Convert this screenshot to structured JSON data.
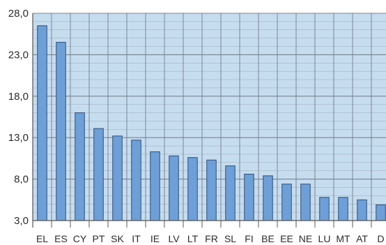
{
  "chart_data": {
    "type": "bar",
    "title": "",
    "xlabel": "",
    "ylabel": "",
    "categories": [
      "EL",
      "ES",
      "CY",
      "PT",
      "SK",
      "IT",
      "IE",
      "LV",
      "LT",
      "FR",
      "SL",
      "FI",
      "BE",
      "EE",
      "NE",
      "LU",
      "MT",
      "AT",
      "D"
    ],
    "values": [
      26.5,
      24.5,
      16.0,
      14.1,
      13.2,
      12.7,
      11.3,
      10.8,
      10.6,
      10.3,
      9.6,
      8.6,
      8.4,
      7.4,
      7.4,
      5.8,
      5.8,
      5.5,
      4.9
    ],
    "ylim": [
      3.0,
      28.0
    ],
    "yticks": [
      "28,0",
      "23,0",
      "18,0",
      "13,0",
      "8,0",
      "3,0"
    ],
    "ytick_values": [
      28,
      23,
      18,
      13,
      8,
      3
    ],
    "grid": true,
    "colors": {
      "plot_background": "#c6dcef",
      "bar_fill": "#6e9fd6",
      "bar_stroke": "#2f4f7a",
      "grid": "#6f7a85",
      "axis": "#555555"
    }
  }
}
